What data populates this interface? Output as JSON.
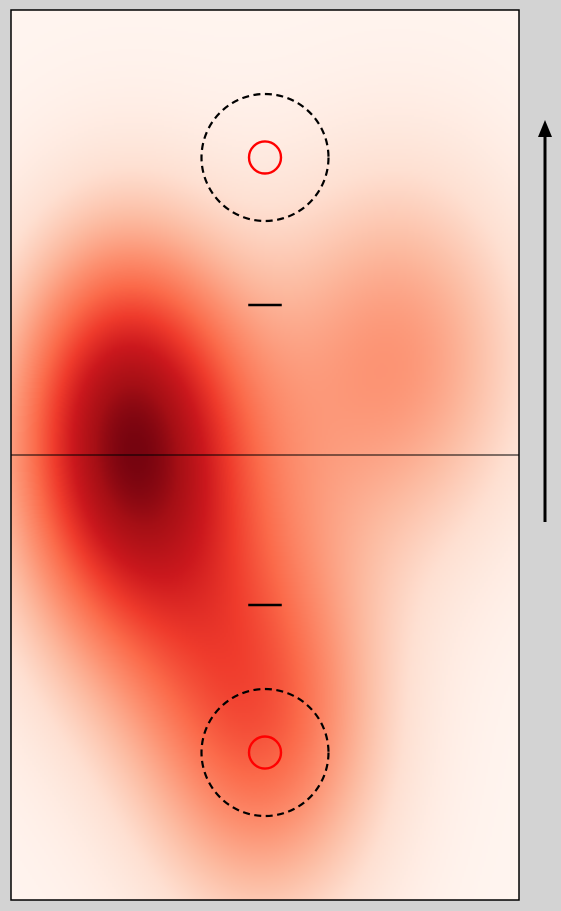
{
  "chart_data": {
    "type": "heatmap",
    "title": "",
    "xlabel": "",
    "ylabel": "",
    "xlim": [
      -1,
      1
    ],
    "ylim": [
      -1.75,
      1.75
    ],
    "colormap": "Reds",
    "colorbar": false,
    "grid": false,
    "midline_y": 0,
    "density_peaks": [
      {
        "x": -0.55,
        "y": 0.15,
        "sx": 0.34,
        "sy": 0.55,
        "weight": 1.0
      },
      {
        "x": 0.52,
        "y": 0.38,
        "sx": 0.38,
        "sy": 0.55,
        "weight": 0.55
      },
      {
        "x": 0.0,
        "y": -1.08,
        "sx": 0.35,
        "sy": 0.55,
        "weight": 0.7
      },
      {
        "x": -0.45,
        "y": -0.35,
        "sx": 0.4,
        "sy": 0.6,
        "weight": 0.4
      }
    ],
    "markers": [
      {
        "kind": "circle",
        "x": 0,
        "y": 1.17,
        "r": 0.063,
        "color": "#ff0000",
        "style": "solid"
      },
      {
        "kind": "circle",
        "x": 0,
        "y": 1.17,
        "r": 0.25,
        "color": "#000000",
        "style": "dashed"
      },
      {
        "kind": "circle",
        "x": 0,
        "y": -1.17,
        "r": 0.063,
        "color": "#ff0000",
        "style": "solid"
      },
      {
        "kind": "circle",
        "x": 0,
        "y": -1.17,
        "r": 0.25,
        "color": "#000000",
        "style": "dashed"
      },
      {
        "kind": "dash",
        "x": 0,
        "y": 0.59,
        "half_width": 0.066,
        "color": "#000000"
      },
      {
        "kind": "dash",
        "x": 0,
        "y": -0.59,
        "half_width": 0.066,
        "color": "#000000"
      }
    ],
    "direction_arrow": {
      "direction": "up",
      "color": "#000000"
    }
  }
}
